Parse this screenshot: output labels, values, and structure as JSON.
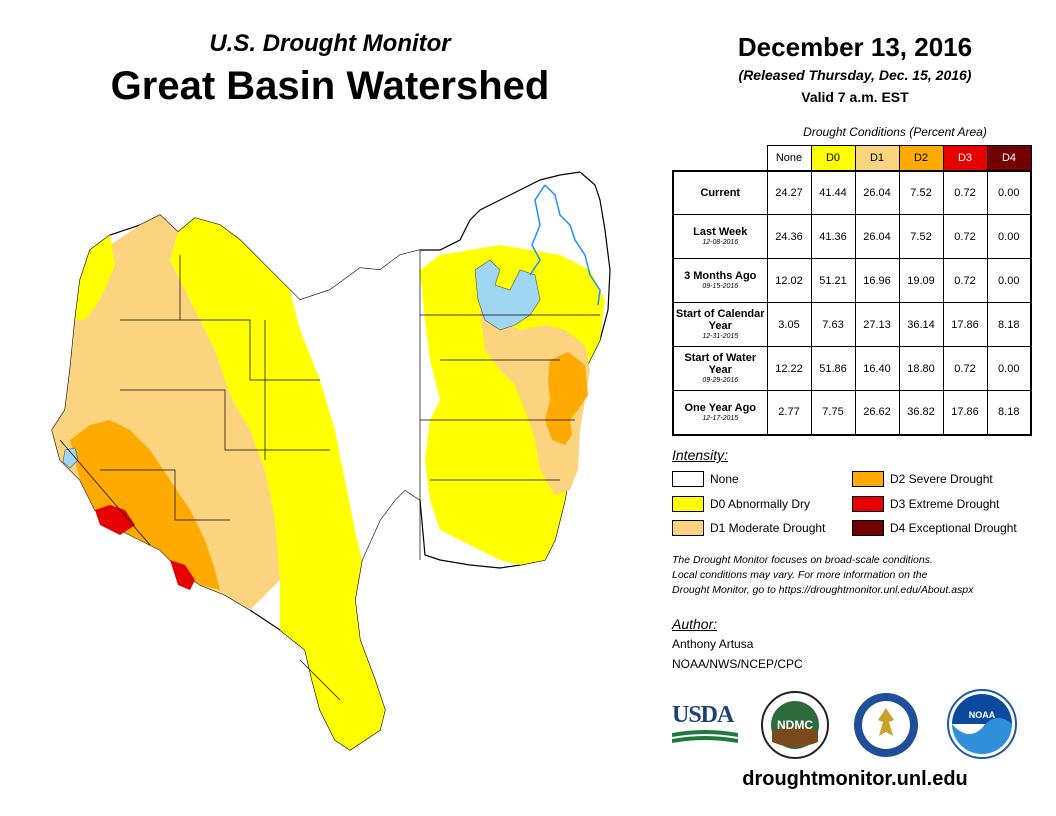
{
  "header": {
    "subtitle": "U.S. Drought Monitor",
    "title": "Great Basin Watershed",
    "date": "December 13, 2016",
    "released": "(Released Thursday, Dec. 15, 2016)",
    "valid": "Valid 7 a.m. EST"
  },
  "table": {
    "caption": "Drought Conditions (Percent Area)",
    "categories": [
      "None",
      "D0",
      "D1",
      "D2",
      "D3",
      "D4"
    ],
    "category_colors": [
      "#ffffff",
      "#ffff00",
      "#fcd37f",
      "#ffaa00",
      "#e60000",
      "#730000"
    ],
    "rows": [
      {
        "label": "Current",
        "sublabel": "",
        "values": [
          "24.27",
          "41.44",
          "26.04",
          "7.52",
          "0.72",
          "0.00"
        ]
      },
      {
        "label": "Last Week",
        "sublabel": "12-08-2016",
        "values": [
          "24.36",
          "41.36",
          "26.04",
          "7.52",
          "0.72",
          "0.00"
        ]
      },
      {
        "label": "3 Months Ago",
        "sublabel": "09-15-2016",
        "values": [
          "12.02",
          "51.21",
          "16.96",
          "19.09",
          "0.72",
          "0.00"
        ]
      },
      {
        "label": "Start of Calendar Year",
        "sublabel": "12-31-2015",
        "values": [
          "3.05",
          "7.63",
          "27.13",
          "36.14",
          "17.86",
          "8.18"
        ]
      },
      {
        "label": "Start of Water Year",
        "sublabel": "09-29-2016",
        "values": [
          "12.22",
          "51.86",
          "16.40",
          "18.80",
          "0.72",
          "0.00"
        ]
      },
      {
        "label": "One Year Ago",
        "sublabel": "12-17-2015",
        "values": [
          "2.77",
          "7.75",
          "26.62",
          "36.82",
          "17.86",
          "8.18"
        ]
      }
    ]
  },
  "legend": {
    "heading": "Intensity:",
    "items": [
      {
        "label": "None",
        "color": "#ffffff"
      },
      {
        "label": "D0 Abnormally Dry",
        "color": "#ffff00"
      },
      {
        "label": "D1 Moderate Drought",
        "color": "#fcd37f"
      },
      {
        "label": "D2 Severe Drought",
        "color": "#ffaa00"
      },
      {
        "label": "D3 Extreme Drought",
        "color": "#e60000"
      },
      {
        "label": "D4 Exceptional Drought",
        "color": "#730000"
      }
    ]
  },
  "note": {
    "line1": "The Drought Monitor focuses on broad-scale conditions.",
    "line2": "Local conditions may vary. For more information on the",
    "line3": "Drought Monitor, go to https://droughtmonitor.unl.edu/About.aspx"
  },
  "author": {
    "heading": "Author:",
    "name": "Anthony Artusa",
    "org": "NOAA/NWS/NCEP/CPC"
  },
  "logos": {
    "usda": "USDA",
    "ndmc": "NDMC",
    "noaa": "NOAA"
  },
  "map_colors": {
    "lake": "#9fd7f2",
    "river": "#1e90ff"
  },
  "footer_url": "droughtmonitor.unl.edu"
}
